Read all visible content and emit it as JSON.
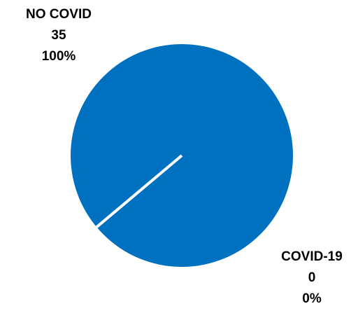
{
  "chart_data": {
    "type": "pie",
    "slices": [
      {
        "name": "NO COVID",
        "value": 35,
        "percent": "100%",
        "color": "#0070C0"
      },
      {
        "name": "COVID-19",
        "value": 0,
        "percent": "0%",
        "color": "#ffffff"
      }
    ],
    "start_angle_deg": 140,
    "labels": {
      "no_covid": {
        "name": "NO COVID",
        "value": "35",
        "percent": "100%"
      },
      "covid": {
        "name": "COVID-19",
        "value": "0",
        "percent": "0%"
      }
    }
  }
}
